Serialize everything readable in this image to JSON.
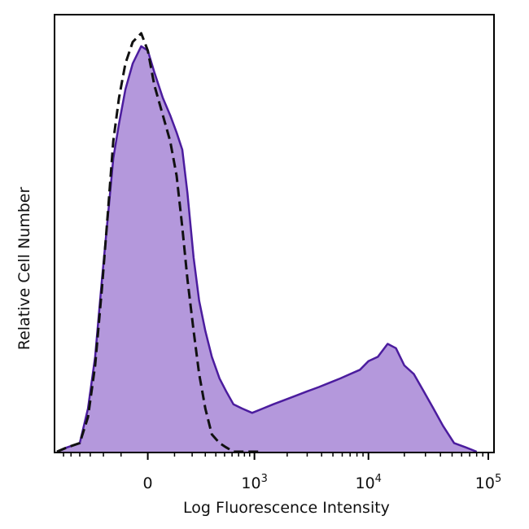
{
  "chart_data": {
    "type": "area",
    "title": "",
    "xlabel": "Log Fluorescence Intensity",
    "ylabel": "Relative Cell Number",
    "x_scale": "biexponential",
    "xlim": [
      -700,
      100000
    ],
    "ylim": [
      0,
      100
    ],
    "y_ticks_labeled": false,
    "grid": false,
    "legend": "none",
    "x_ticks": [
      {
        "value": 0,
        "base": "0",
        "exp": ""
      },
      {
        "value": 1000,
        "base": "10",
        "exp": "3"
      },
      {
        "value": 10000,
        "base": "10",
        "exp": "4"
      },
      {
        "value": 100000,
        "base": "10",
        "exp": "5"
      }
    ],
    "series": [
      {
        "style": "filled",
        "fill": "#b498dc",
        "stroke": "#4b1c9e",
        "x": [
          -700,
          -550,
          -400,
          -320,
          -260,
          -210,
          -170,
          -140,
          -110,
          -80,
          -50,
          -20,
          0,
          20,
          50,
          80,
          110,
          140,
          170,
          210,
          250,
          300,
          360,
          440,
          520,
          620,
          760,
          950,
          1200,
          1500,
          1900,
          2400,
          3000,
          3800,
          4700,
          5800,
          7000,
          8500,
          10000,
          12000,
          14500,
          17000,
          20000,
          24000,
          29000,
          35000,
          42000,
          52000,
          65000,
          80000
        ],
        "y": [
          0,
          1,
          2,
          10,
          22,
          40,
          55,
          68,
          76,
          84,
          90,
          94,
          93,
          88,
          82,
          78,
          74,
          70,
          60,
          45,
          35,
          28,
          22,
          17,
          14,
          11,
          10,
          9,
          10,
          11,
          12,
          13,
          14,
          15,
          16,
          17,
          18,
          19,
          21,
          22,
          25,
          24,
          20,
          18,
          14,
          10,
          6,
          2,
          1,
          0
        ]
      },
      {
        "style": "dashed",
        "stroke": "#111111",
        "x": [
          -700,
          -550,
          -400,
          -320,
          -260,
          -210,
          -170,
          -140,
          -110,
          -80,
          -50,
          -20,
          0,
          20,
          50,
          80,
          110,
          140,
          170,
          210,
          250,
          300,
          360,
          440,
          520,
          620,
          760,
          950,
          1200
        ],
        "y": [
          0,
          1,
          2,
          8,
          20,
          38,
          56,
          72,
          82,
          90,
          95,
          97,
          93,
          85,
          78,
          72,
          64,
          52,
          40,
          28,
          18,
          10,
          4,
          2,
          1,
          0,
          0,
          0,
          0
        ]
      }
    ]
  }
}
